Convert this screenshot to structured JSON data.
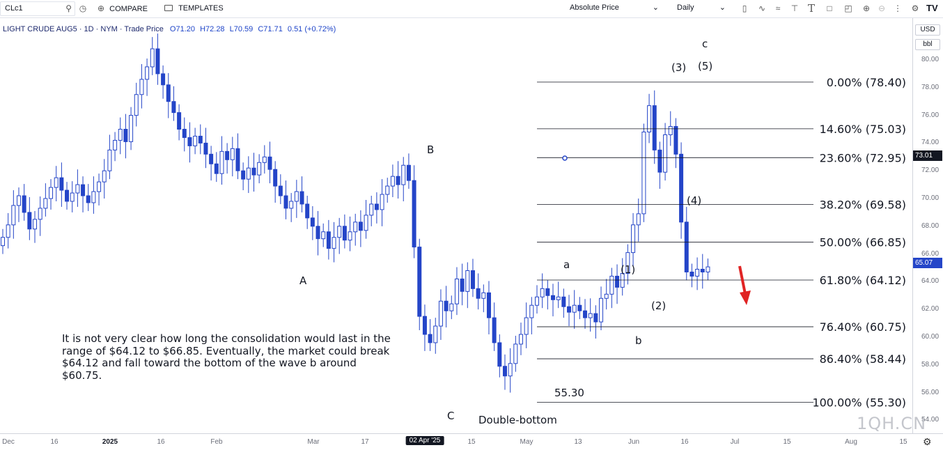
{
  "toolbar": {
    "symbol": "CLc1",
    "compare_label": "COMPARE",
    "templates_label": "TEMPLATES",
    "price_mode": "Absolute Price",
    "interval": "Daily"
  },
  "legend": {
    "title": "LIGHT CRUDE AUG5 · 1D · NYM · Trade Price",
    "open": "O71.20",
    "high": "H72.28",
    "low": "L70.59",
    "close": "C71.71",
    "change": "0.51 (+0.72%)"
  },
  "price_axis": {
    "currency": "USD",
    "unit": "bbl",
    "ticks": [
      "80.00",
      "78.00",
      "76.00",
      "74.00",
      "72.00",
      "70.00",
      "68.00",
      "66.00",
      "64.00",
      "62.00",
      "60.00",
      "58.00",
      "56.00",
      "54.00"
    ],
    "crosshair_label": "73.01",
    "last_price_label": "65.07"
  },
  "time_axis": {
    "labels": [
      "Dec",
      "16",
      "2025",
      "16",
      "Feb",
      "Mar",
      "17",
      "02 Apr '25",
      "15",
      "May",
      "13",
      "Jun",
      "16",
      "Jul",
      "15",
      "Aug",
      "15"
    ]
  },
  "fibonacci": [
    {
      "label": "0.00% (78.40)",
      "price": 78.4
    },
    {
      "label": "14.60% (75.03)",
      "price": 75.03
    },
    {
      "label": "23.60% (72.95)",
      "price": 72.95
    },
    {
      "label": "38.20% (69.58)",
      "price": 69.58
    },
    {
      "label": "50.00% (66.85)",
      "price": 66.85
    },
    {
      "label": "61.80% (64.12)",
      "price": 64.12
    },
    {
      "label": "76.40% (60.75)",
      "price": 60.75
    },
    {
      "label": "86.40% (58.44)",
      "price": 58.44
    },
    {
      "label": "100.00% (55.30)",
      "price": 55.3
    }
  ],
  "annotations": {
    "wave_A": "A",
    "wave_B": "B",
    "wave_C": "C",
    "double_bottom": "Double-bottom",
    "low_value": "55.30",
    "wave_a": "a",
    "wave_b": "b",
    "wave_c": "c",
    "wave_1": "(1)",
    "wave_2": "(2)",
    "wave_3": "(3)",
    "wave_4": "(4)",
    "wave_5": "(5)"
  },
  "note_text": "It is not very clear how long the consolidation would last in the range of $64.12 to $66.85. Eventually, the market could break $64.12 and fall toward the bottom of the wave b around $60.75.",
  "watermark": "1QH.CN",
  "colors": {
    "candle": "#2445c8",
    "arrow": "#e02424",
    "fib_line": "#131722",
    "price_label_bg": "#2445c8",
    "crosshair_bg": "#131722"
  },
  "chart_data": {
    "type": "candlestick",
    "closes": [
      67.2,
      68.1,
      69.5,
      70.2,
      69.0,
      67.8,
      68.5,
      69.3,
      70.0,
      70.8,
      71.5,
      70.6,
      69.8,
      70.4,
      71.0,
      70.2,
      69.7,
      70.5,
      71.2,
      72.0,
      73.5,
      74.2,
      75.0,
      74.1,
      76.0,
      77.5,
      78.6,
      79.5,
      80.8,
      79.0,
      78.2,
      77.0,
      76.2,
      75.0,
      74.4,
      73.8,
      74.5,
      74.0,
      73.2,
      72.5,
      71.8,
      73.4,
      72.8,
      73.6,
      72.0,
      71.4,
      72.2,
      71.7,
      72.6,
      73.0,
      72.1,
      70.9,
      70.2,
      69.3,
      69.8,
      70.5,
      69.6,
      68.6,
      68.0,
      67.1,
      67.6,
      66.4,
      67.2,
      68.0,
      67.0,
      67.6,
      68.3,
      67.7,
      68.8,
      69.6,
      69.2,
      70.3,
      70.9,
      71.6,
      71.0,
      72.4,
      71.3,
      66.5,
      61.5,
      60.2,
      59.6,
      60.8,
      62.6,
      61.9,
      62.4,
      64.2,
      63.3,
      64.8,
      63.5,
      62.8,
      63.2,
      61.4,
      59.6,
      57.9,
      57.2,
      58.1,
      59.5,
      60.2,
      61.4,
      62.3,
      62.9,
      63.5,
      63.0,
      62.7,
      62.9,
      62.2,
      61.8,
      62.3,
      61.9,
      61.4,
      61.7,
      61.1,
      62.8,
      63.1,
      64.4,
      63.6,
      64.6,
      66.1,
      68.1,
      68.9,
      74.8,
      76.7,
      73.5,
      71.9,
      74.6,
      75.2,
      73.2,
      68.3,
      64.7,
      64.4,
      64.9,
      64.7,
      65.07
    ],
    "ylim": [
      54,
      81
    ],
    "annotation_prices": {
      "low": 55.3,
      "high": 78.4
    }
  }
}
